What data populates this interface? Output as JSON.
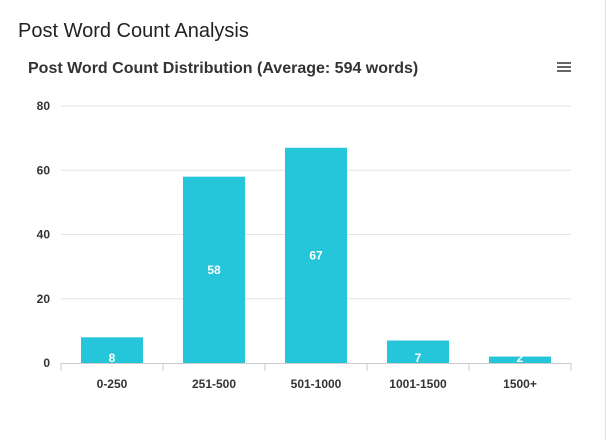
{
  "panel": {
    "title": "Post Word Count Analysis"
  },
  "menu_icon": "hamburger-menu-icon",
  "colors": {
    "bar": "#26c6da",
    "grid": "#e6e6e6",
    "axis": "#cccccc"
  },
  "chart_data": {
    "type": "bar",
    "title": "Post Word Count Distribution (Average: 594 words)",
    "xlabel": "",
    "ylabel": "",
    "categories": [
      "0-250",
      "251-500",
      "501-1000",
      "1001-1500",
      "1500+"
    ],
    "values": [
      8,
      58,
      67,
      7,
      2
    ],
    "ylim": [
      0,
      80
    ],
    "yticks": [
      0,
      20,
      40,
      60,
      80
    ],
    "grid": true,
    "legend": "none",
    "data_labels": true
  }
}
